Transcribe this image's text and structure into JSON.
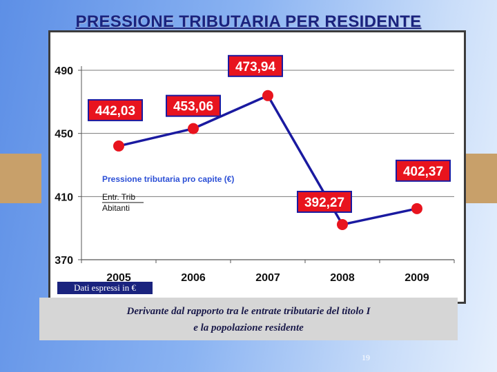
{
  "slide": {
    "title": "PRESSIONE TRIBUTARIA PER RESIDENTE",
    "note_line1": "Derivante dal rapporto tra le entrate tributarie del titolo I",
    "note_line2": "e la popolazione residente",
    "unit_badge": "Dati espressi in €",
    "page_number": "19"
  },
  "colors": {
    "line": "#1a1aa0",
    "marker": "#e8141e",
    "label_bg": "#e8141e",
    "label_border": "#1a1aa0",
    "label_text": "#ffffff",
    "subtitle": "#2b4fd6"
  },
  "chart_data": {
    "type": "line",
    "categories": [
      "2005",
      "2006",
      "2007",
      "2008",
      "2009"
    ],
    "series": [
      {
        "name": "Pressione tributaria pro capite (€)",
        "values": [
          442.03,
          453.06,
          473.94,
          392.27,
          402.37
        ],
        "labels": [
          "442,03",
          "453,06",
          "473,94",
          "392,27",
          "402,37"
        ]
      }
    ],
    "ylim": [
      370,
      490
    ],
    "yticks": [
      370,
      410,
      450,
      490
    ],
    "grid": true,
    "legend_title": "Pressione tributaria pro capite  (€)",
    "formula_numerator": "Entr. Trib",
    "formula_denominator": "Abitanti"
  }
}
